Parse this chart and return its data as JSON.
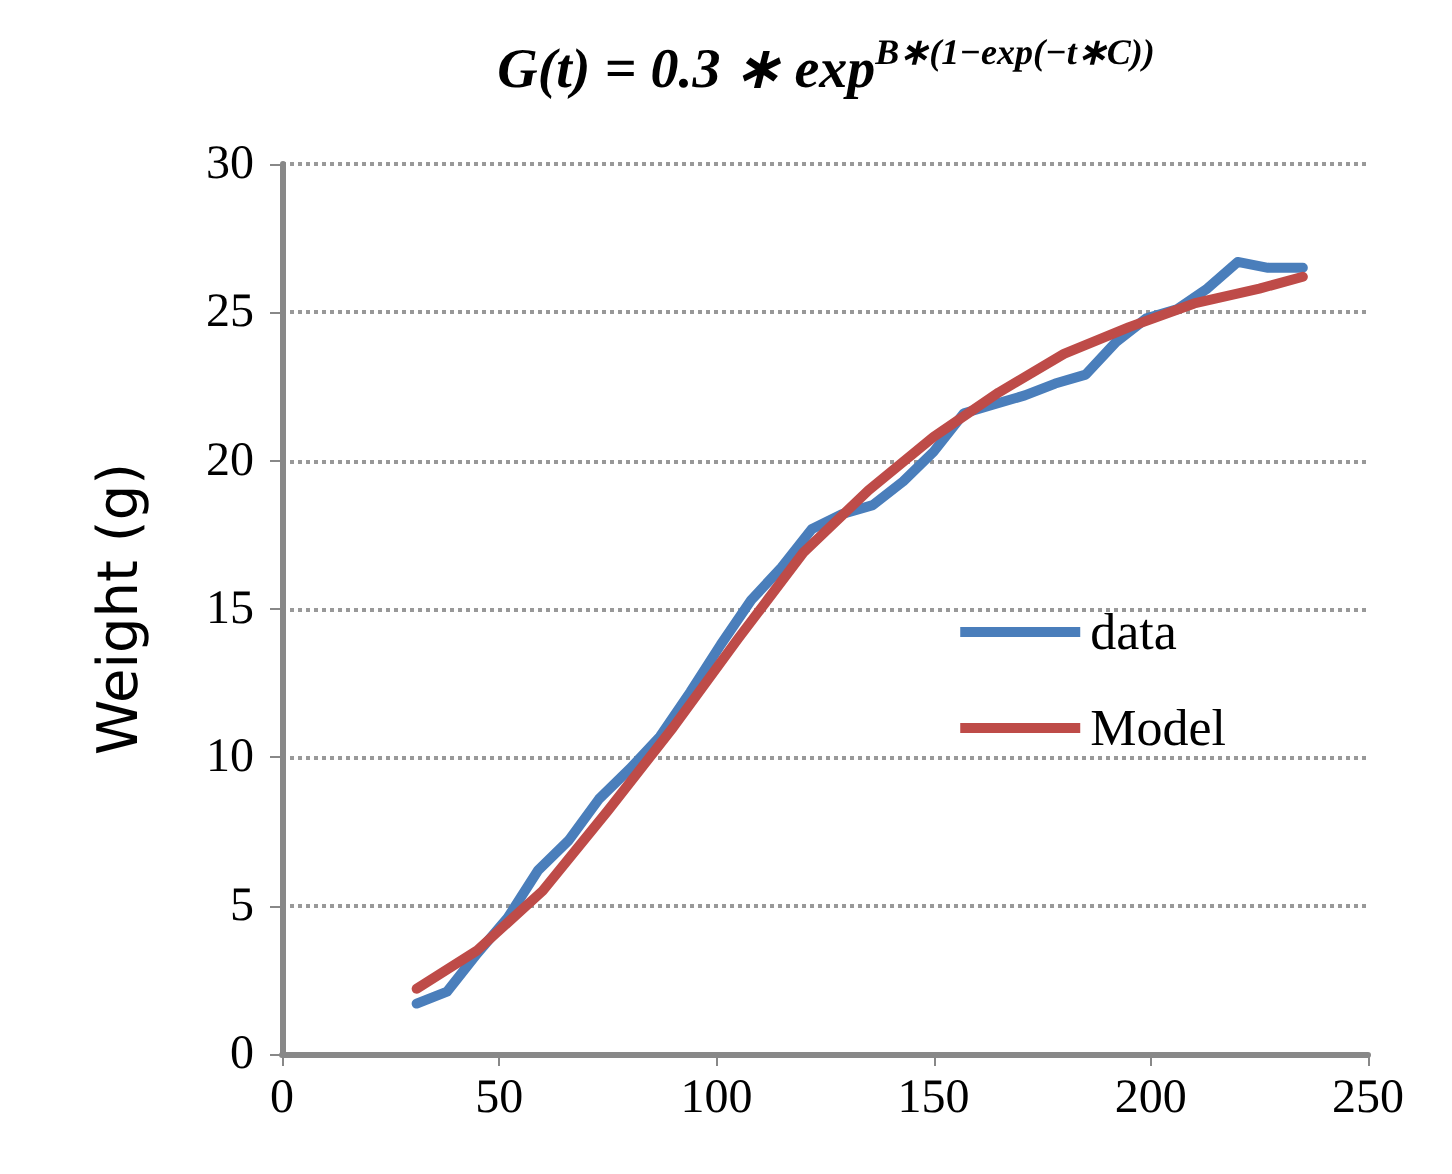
{
  "chart_data": {
    "type": "line",
    "title": "G(t) = 0.3 ∗ exp$^{B∗(1−exp(−t∗C))}$",
    "ylabel": "Weight (g)",
    "xlim": [
      0,
      250
    ],
    "xticks": [
      0,
      50,
      100,
      150,
      200,
      250
    ],
    "ylim": [
      0,
      30
    ],
    "yticks": [
      0,
      5,
      10,
      15,
      20,
      25,
      30
    ],
    "grid": "y",
    "legend": "right",
    "marker": "none",
    "line_style": "solid",
    "series": [
      {
        "name": "data",
        "color": "#4a7ebb",
        "x": [
          31,
          38,
          45,
          52,
          59,
          66,
          73,
          80,
          87,
          94,
          101,
          108,
          115,
          122,
          129,
          136,
          143,
          150,
          157,
          164,
          171,
          178,
          185,
          192,
          199,
          206,
          213,
          220,
          227,
          235
        ],
        "values": [
          1.7,
          2.1,
          3.4,
          4.6,
          6.2,
          7.2,
          8.6,
          9.6,
          10.7,
          12.2,
          13.8,
          15.3,
          16.4,
          17.7,
          18.2,
          18.5,
          19.3,
          20.3,
          21.6,
          21.9,
          22.2,
          22.6,
          22.9,
          24.0,
          24.8,
          25.1,
          25.8,
          26.7,
          26.5,
          26.5
        ]
      },
      {
        "name": "Model",
        "color": "#be4b48",
        "x": [
          31,
          45,
          60,
          75,
          90,
          105,
          120,
          135,
          150,
          165,
          180,
          195,
          210,
          225,
          235
        ],
        "values": [
          2.2,
          3.5,
          5.5,
          8.2,
          11.0,
          14.0,
          16.9,
          19.0,
          20.8,
          22.3,
          23.6,
          24.5,
          25.3,
          25.8,
          26.2
        ]
      }
    ]
  }
}
